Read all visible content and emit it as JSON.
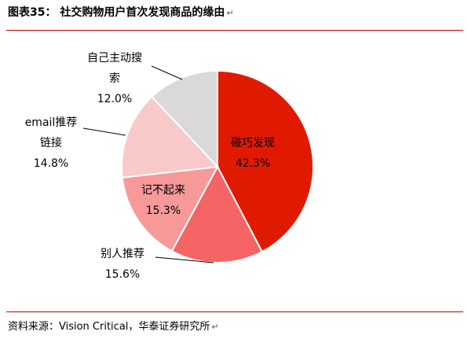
{
  "title": "图表35：   社交购物用户首次发现商品的缘由",
  "para_mark": "↵",
  "source": "资料来源：Vision Critical，华泰证券研究所",
  "chart_data": {
    "type": "pie",
    "title": "社交购物用户首次发现商品的缘由",
    "slices": [
      {
        "label_lines": [
          "碰巧发现"
        ],
        "pct_text": "42.3%",
        "value": 42.3,
        "color": "#e01a00"
      },
      {
        "label_lines": [
          "别人推荐"
        ],
        "pct_text": "15.6%",
        "value": 15.6,
        "color": "#f46464"
      },
      {
        "label_lines": [
          "记不起来"
        ],
        "pct_text": "15.3%",
        "value": 15.3,
        "color": "#f79999"
      },
      {
        "label_lines": [
          "email推荐",
          "链接"
        ],
        "pct_text": "14.8%",
        "value": 14.8,
        "color": "#f9c9c9"
      },
      {
        "label_lines": [
          "自己主动搜",
          "索"
        ],
        "pct_text": "12.0%",
        "value": 12.0,
        "color": "#d9d9d9"
      }
    ]
  }
}
